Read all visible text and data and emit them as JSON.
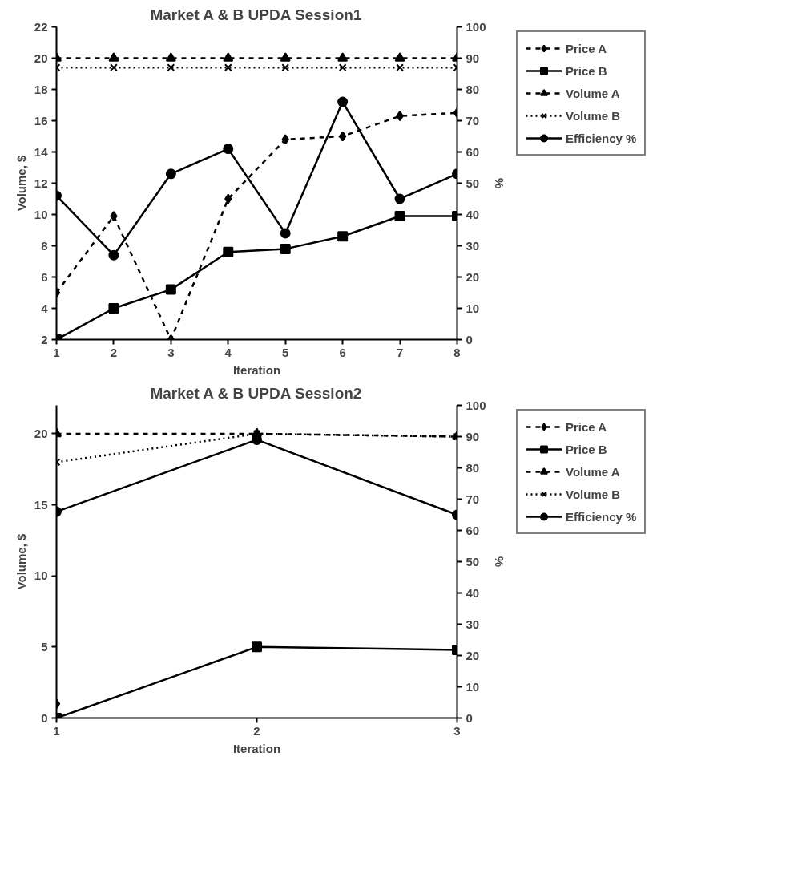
{
  "chart_data": [
    {
      "type": "line",
      "title": "Market A & B UPDA Session1",
      "xlabel": "Iteration",
      "ylabel": "Volume, $",
      "y2label": "%",
      "x": [
        1,
        2,
        3,
        4,
        5,
        6,
        7,
        8
      ],
      "xlim": [
        1,
        8
      ],
      "xticks": [
        1,
        2,
        3,
        4,
        5,
        6,
        7,
        8
      ],
      "ylim": [
        2,
        22
      ],
      "yticks": [
        2,
        4,
        6,
        8,
        10,
        12,
        14,
        16,
        18,
        20,
        22
      ],
      "y2lim": [
        0,
        100
      ],
      "y2ticks": [
        0,
        10,
        20,
        30,
        40,
        50,
        60,
        70,
        80,
        90,
        100
      ],
      "grid": false,
      "legend": "right",
      "series": [
        {
          "name": "Price A",
          "color": "#000000",
          "marker": "diamond",
          "line_style": "dashed",
          "values": [
            5,
            9.9,
            2,
            11.0,
            14.8,
            15.0,
            16.3,
            16.5
          ]
        },
        {
          "name": "Price B",
          "color": "#000000",
          "marker": "square",
          "line_style": "solid",
          "values": [
            2,
            4,
            5.2,
            7.6,
            7.8,
            8.6,
            9.9,
            9.9
          ]
        },
        {
          "name": "Volume A",
          "color": "#000000",
          "marker": "triangle",
          "line_style": "dashed",
          "values": [
            20,
            20,
            20,
            20,
            20,
            20,
            20,
            20
          ]
        },
        {
          "name": "Volume B",
          "color": "#000000",
          "marker": "cross",
          "line_style": "dotted",
          "values": [
            19.4,
            19.4,
            19.4,
            19.4,
            19.4,
            19.4,
            19.4,
            19.4
          ]
        },
        {
          "name": "Efficiency %",
          "color": "#000000",
          "marker": "circle",
          "line_style": "solid",
          "axis": "y2",
          "values": [
            46,
            27,
            53,
            61,
            34,
            76,
            45,
            53
          ]
        }
      ]
    },
    {
      "type": "line",
      "title": "Market A & B UPDA Session2",
      "xlabel": "Iteration",
      "ylabel": "Volume, $",
      "y2label": "%",
      "x": [
        1,
        2,
        3
      ],
      "xlim": [
        1,
        3
      ],
      "xticks": [
        1,
        2,
        3
      ],
      "ylim": [
        0,
        22
      ],
      "yticks": [
        0,
        5,
        10,
        15,
        20
      ],
      "y2lim": [
        0,
        100
      ],
      "y2ticks": [
        0,
        10,
        20,
        30,
        40,
        50,
        60,
        70,
        80,
        90,
        100
      ],
      "grid": false,
      "legend": "right",
      "series": [
        {
          "name": "Price A",
          "color": "#000000",
          "marker": "diamond",
          "line_style": "dashed",
          "values": [
            1,
            null,
            null
          ]
        },
        {
          "name": "Price B",
          "color": "#000000",
          "marker": "square",
          "line_style": "solid",
          "values": [
            0,
            5,
            4.8
          ]
        },
        {
          "name": "Volume A",
          "color": "#000000",
          "marker": "triangle",
          "line_style": "dashed",
          "values": [
            20,
            20,
            19.8
          ]
        },
        {
          "name": "Volume B",
          "color": "#000000",
          "marker": "cross",
          "line_style": "dotted",
          "values": [
            18,
            20,
            19.8
          ]
        },
        {
          "name": "Efficiency %",
          "color": "#000000",
          "marker": "circle",
          "line_style": "solid",
          "axis": "y2",
          "values": [
            66,
            89,
            65
          ]
        }
      ]
    }
  ]
}
